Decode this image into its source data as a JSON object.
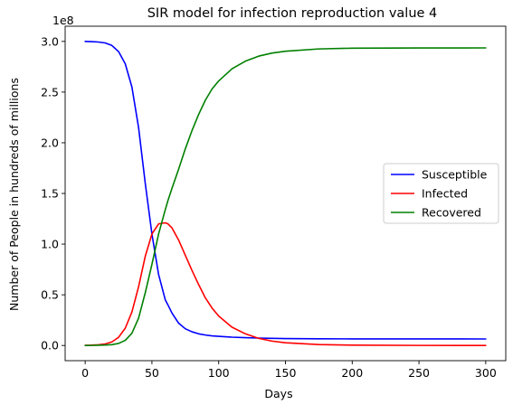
{
  "chart_data": {
    "type": "line",
    "title": "SIR model for infection reproduction value 4",
    "xlabel": "Days",
    "ylabel": "Number of People in hundreds of millions",
    "y_offset_label": "1e8",
    "xlim": [
      -15,
      315
    ],
    "ylim": [
      -15000000,
      315000000
    ],
    "xticks": [
      0,
      50,
      100,
      150,
      200,
      250,
      300
    ],
    "xtick_labels": [
      "0",
      "50",
      "100",
      "150",
      "200",
      "250",
      "300"
    ],
    "yticks": [
      0,
      50000000,
      100000000,
      150000000,
      200000000,
      250000000,
      300000000
    ],
    "ytick_labels": [
      "0.0",
      "0.5",
      "1.0",
      "1.5",
      "2.0",
      "2.5",
      "3.0"
    ],
    "grid": false,
    "legend_position": "center-right",
    "x": [
      0,
      5,
      10,
      15,
      20,
      25,
      30,
      35,
      40,
      45,
      50,
      55,
      60,
      62,
      65,
      70,
      75,
      80,
      85,
      90,
      95,
      100,
      110,
      120,
      130,
      140,
      150,
      175,
      200,
      250,
      300
    ],
    "series": [
      {
        "name": "Susceptible",
        "color": "#0000ff",
        "values": [
          300000000,
          299800000,
          299400000,
          298500000,
          296000000,
          290000000,
          278000000,
          255000000,
          215000000,
          160000000,
          110000000,
          70000000,
          45000000,
          40000000,
          32000000,
          22000000,
          16500000,
          13500000,
          11500000,
          10300000,
          9500000,
          9000000,
          8200000,
          7700000,
          7300000,
          7000000,
          6800000,
          6600000,
          6500000,
          6450000,
          6400000
        ]
      },
      {
        "name": "Infected",
        "color": "#ff0000",
        "values": [
          100000,
          300000,
          700000,
          1500000,
          3500000,
          8000000,
          17000000,
          33000000,
          58000000,
          88000000,
          110000000,
          120000000,
          121000000,
          120000000,
          116000000,
          104000000,
          89000000,
          74000000,
          60000000,
          47000000,
          37000000,
          29000000,
          18000000,
          11500000,
          7000000,
          4300000,
          2700000,
          900000,
          300000,
          50000,
          10000
        ]
      },
      {
        "name": "Recovered",
        "color": "#008000",
        "values": [
          0,
          50000,
          200000,
          400000,
          800000,
          2000000,
          5000000,
          12000000,
          27000000,
          52000000,
          80000000,
          110000000,
          134000000,
          143000000,
          155000000,
          174000000,
          194000000,
          212000000,
          228000000,
          242000000,
          253000000,
          261000000,
          273000000,
          280500000,
          285500000,
          288500000,
          290300000,
          292600000,
          293300000,
          293550000,
          293590000
        ]
      }
    ]
  }
}
